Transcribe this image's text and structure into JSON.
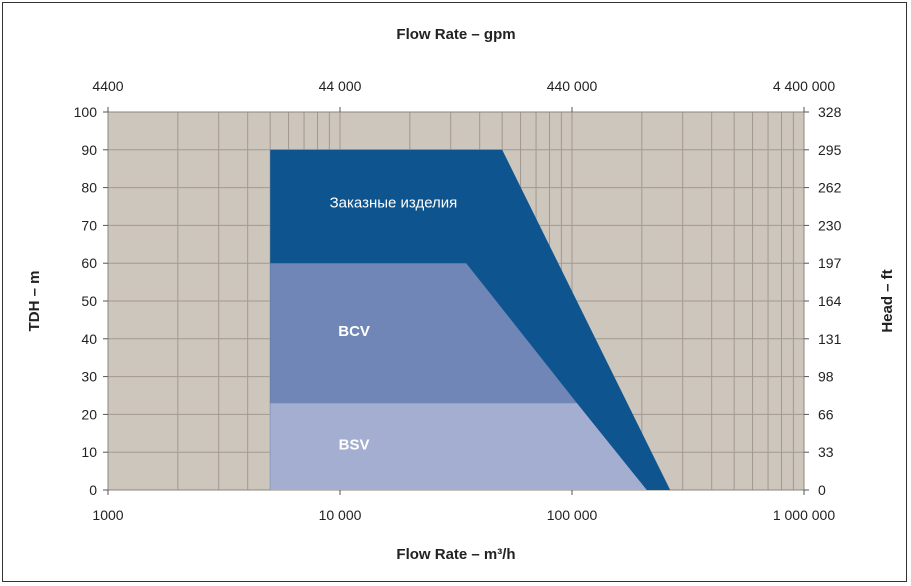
{
  "chart_data": {
    "type": "area",
    "title": "",
    "x_axis": {
      "label": "Flow Rate – m³/h",
      "scale": "log",
      "range": [
        1000,
        1000000
      ],
      "ticks": [
        1000,
        10000,
        100000,
        1000000
      ],
      "tick_labels": [
        "1000",
        "10 000",
        "100 000",
        "1 000 000"
      ]
    },
    "x2_axis": {
      "label": "Flow Rate – gpm",
      "scale": "log",
      "range": [
        4400,
        4400000
      ],
      "ticks": [
        4400,
        44000,
        440000,
        4400000
      ],
      "tick_labels": [
        "4400",
        "44 000",
        "440 000",
        "4 400 000"
      ]
    },
    "y_axis": {
      "label": "TDH – m",
      "range": [
        0,
        100
      ],
      "ticks": [
        0,
        10,
        20,
        30,
        40,
        50,
        60,
        70,
        80,
        90,
        100
      ],
      "tick_labels": [
        "0",
        "10",
        "20",
        "30",
        "40",
        "50",
        "60",
        "70",
        "80",
        "90",
        "100"
      ]
    },
    "y2_axis": {
      "label": "Head – ft",
      "tick_values_m": [
        0,
        10,
        20,
        30,
        40,
        50,
        60,
        70,
        80,
        90,
        100
      ],
      "tick_labels": [
        "0",
        "33",
        "66",
        "98",
        "131",
        "164",
        "197",
        "230",
        "262",
        "295",
        "328"
      ]
    },
    "grid": true,
    "series": [
      {
        "name": "Заказные изделия",
        "color": "#0e5590",
        "polygon": [
          [
            5000,
            0
          ],
          [
            5000,
            90
          ],
          [
            50000,
            90
          ],
          [
            265000,
            0
          ]
        ]
      },
      {
        "name": "BCV",
        "color": "#6f86b6",
        "polygon": [
          [
            5000,
            0
          ],
          [
            5000,
            60
          ],
          [
            35000,
            60
          ],
          [
            105000,
            23
          ],
          [
            5000,
            23
          ]
        ]
      },
      {
        "name": "BSV",
        "color": "#a3aed0",
        "polygon": [
          [
            5000,
            0
          ],
          [
            5000,
            23
          ],
          [
            105000,
            23
          ],
          [
            210000,
            0
          ]
        ]
      }
    ],
    "labels": [
      {
        "text": "Заказные изделия",
        "x": 17000,
        "y": 76,
        "bold": false
      },
      {
        "text": "BCV",
        "x": 11500,
        "y": 42,
        "bold": true
      },
      {
        "text": "BSV",
        "x": 11500,
        "y": 12,
        "bold": true
      }
    ]
  }
}
